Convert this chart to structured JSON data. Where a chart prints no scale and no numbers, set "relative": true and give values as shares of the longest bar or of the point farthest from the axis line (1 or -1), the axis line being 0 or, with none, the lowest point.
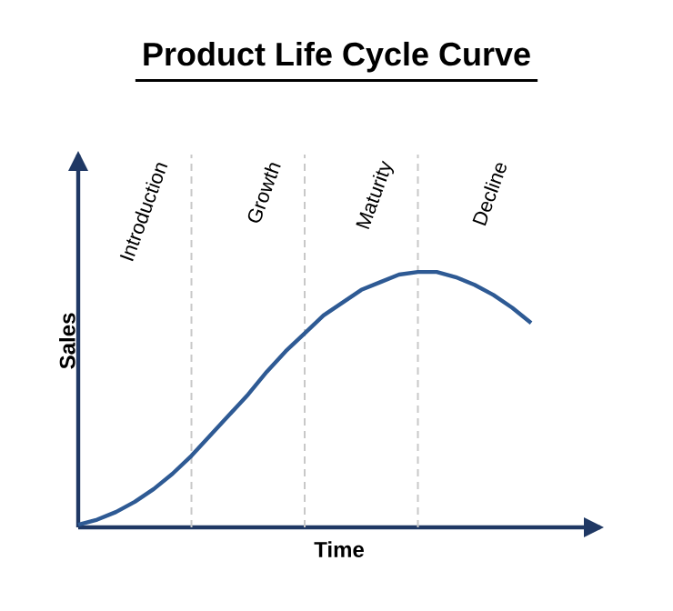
{
  "chart_data": {
    "type": "line",
    "title": "Product Life Cycle Curve",
    "xlabel": "Time",
    "ylabel": "Sales",
    "relative": true,
    "tick_labels": false,
    "grid": "x",
    "marker": "none",
    "line_style": "solid",
    "categories": [
      null,
      null,
      null,
      null,
      null,
      null,
      null,
      null,
      null,
      null,
      null,
      null,
      null,
      null,
      null,
      null,
      null,
      null,
      null,
      null,
      null,
      null,
      null,
      null,
      null
    ],
    "series": [
      {
        "color": "#2e5a94",
        "values": [
          0.01,
          0.03,
          0.06,
          0.1,
          0.15,
          0.21,
          0.28,
          0.36,
          0.44,
          0.52,
          0.61,
          0.69,
          0.76,
          0.83,
          0.88,
          0.93,
          0.96,
          0.99,
          1,
          1,
          0.98,
          0.95,
          0.91,
          0.86,
          0.8
        ]
      }
    ],
    "annotations": [
      "Introduction",
      "Growth",
      "Maturity",
      "Decline"
    ]
  }
}
